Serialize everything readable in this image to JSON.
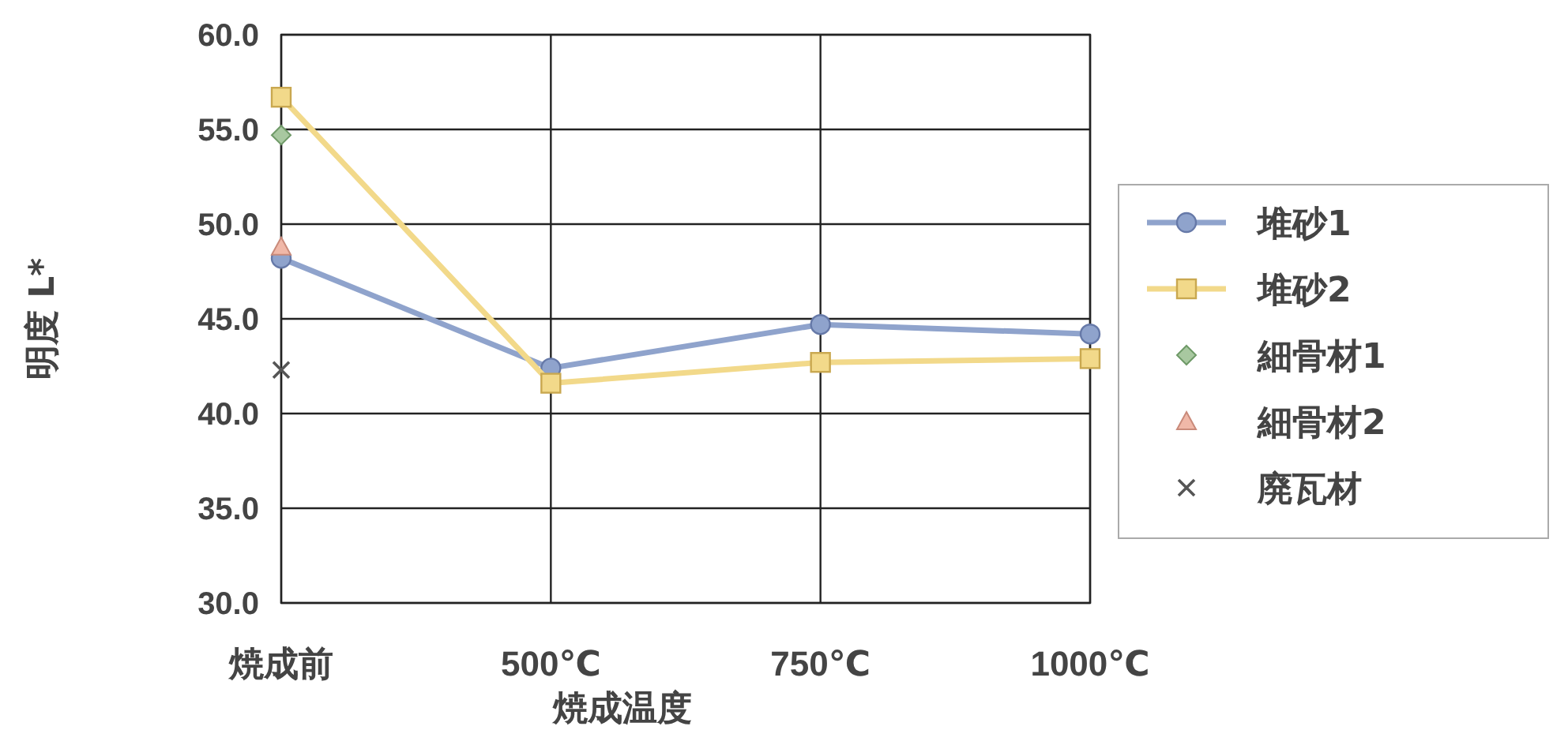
{
  "chart_data": {
    "type": "line",
    "xlabel": "焼成温度",
    "ylabel": "明度 L*",
    "categories": [
      "焼成前",
      "500℃",
      "750℃",
      "1000℃"
    ],
    "ylim": [
      30,
      60
    ],
    "yticks": [
      {
        "value": 30,
        "label": "30.0"
      },
      {
        "value": 35,
        "label": "35.0"
      },
      {
        "value": 40,
        "label": "40.0"
      },
      {
        "value": 45,
        "label": "45.0"
      },
      {
        "value": 50,
        "label": "50.0"
      },
      {
        "value": 55,
        "label": "55.0"
      },
      {
        "value": 60,
        "label": "60.0"
      }
    ],
    "grid": true,
    "legend": "right",
    "series": [
      {
        "name": "堆砂1",
        "marker": "circle",
        "color": "#8fa3cc",
        "values": [
          48.2,
          42.4,
          44.7,
          44.2
        ]
      },
      {
        "name": "堆砂2",
        "marker": "square",
        "color": "#f2d98a",
        "values": [
          56.7,
          41.6,
          42.7,
          42.9
        ]
      },
      {
        "name": "細骨材1",
        "type": "scatter",
        "marker": "diamond",
        "color": "#a8c8a0",
        "values": [
          54.7,
          null,
          null,
          null
        ]
      },
      {
        "name": "細骨材2",
        "type": "scatter",
        "marker": "triangle",
        "color": "#f0b8a8",
        "values": [
          48.8,
          null,
          null,
          null
        ]
      },
      {
        "name": "廃瓦材",
        "type": "scatter",
        "marker": "cross",
        "color": "#555555",
        "values": [
          42.3,
          null,
          null,
          null
        ]
      }
    ]
  }
}
